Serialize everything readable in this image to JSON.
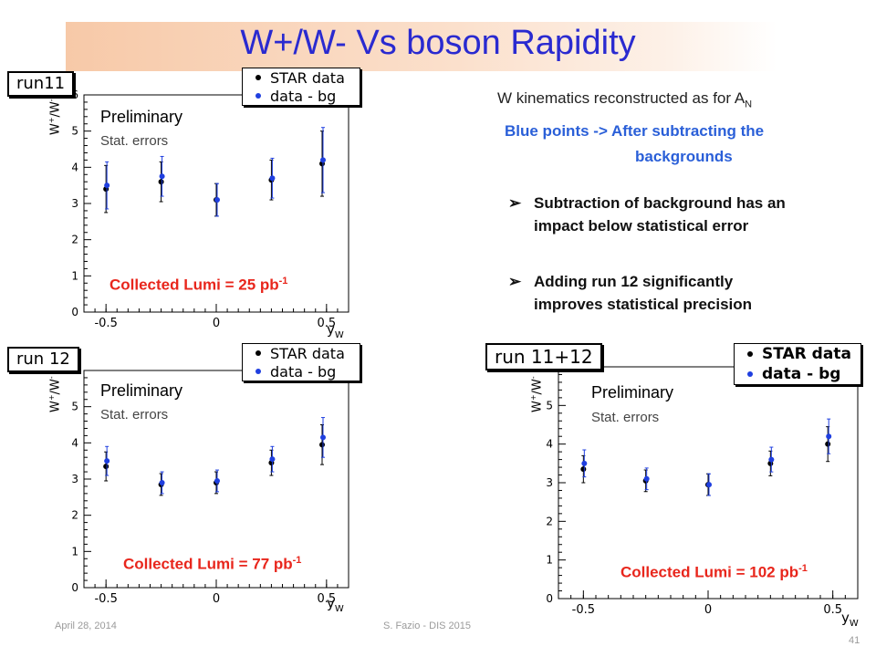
{
  "title": "W+/W- Vs boson Rapidity",
  "right_panel": {
    "kinematics": "W kinematics reconstructed as for A",
    "kinematics_sub": "N",
    "blue_note_line1": "Blue points -> After subtracting the",
    "blue_note_line2": "backgrounds",
    "bullet1_line1": "Subtraction of background has an",
    "bullet1_line2": "impact below statistical error",
    "bullet2_line1": "Adding run 12 significantly",
    "bullet2_line2": "improves statistical precision",
    "bullet_symbol": "➢"
  },
  "footer": {
    "date": "April 28, 2014",
    "author": "S. Fazio - DIS 2015",
    "page": "41"
  },
  "common": {
    "preliminary": "Preliminary",
    "stat_errors": "Stat. errors",
    "legend_star": "STAR data",
    "legend_bg": "data - bg",
    "ylabel_base": "W",
    "ylabel_sup1": "+",
    "ylabel_mid": "/W",
    "ylabel_sup2": "-",
    "xlabel_base": "y",
    "xlabel_sub": "W",
    "lumi_prefix": "Collected Lumi = ",
    "lumi_sup": "-1",
    "colors": {
      "star": "#000000",
      "bg": "#1f3fe0",
      "lumi": "#e8261c",
      "title": "#2a2ad0"
    }
  },
  "chart_data": [
    {
      "type": "scatter",
      "run_label": "run11",
      "lumi": "25 pb",
      "xlim": [
        -0.6,
        0.6
      ],
      "ylim": [
        0,
        6
      ],
      "xticks": [
        "-0.5",
        "0",
        "0.5"
      ],
      "yticks": [
        "0",
        "1",
        "2",
        "3",
        "4",
        "5",
        "6"
      ],
      "series": [
        {
          "name": "STAR data",
          "x": [
            -0.5,
            -0.25,
            0.0,
            0.25,
            0.48
          ],
          "y": [
            3.4,
            3.6,
            3.1,
            3.65,
            4.1
          ],
          "err": [
            0.65,
            0.55,
            0.45,
            0.55,
            0.9
          ]
        },
        {
          "name": "data - bg",
          "x": [
            -0.5,
            -0.25,
            0.0,
            0.25,
            0.48
          ],
          "y": [
            3.5,
            3.75,
            3.1,
            3.7,
            4.2
          ],
          "err": [
            0.65,
            0.55,
            0.45,
            0.55,
            0.9
          ]
        }
      ]
    },
    {
      "type": "scatter",
      "run_label": "run 12",
      "lumi": "77 pb",
      "xlim": [
        -0.6,
        0.6
      ],
      "ylim": [
        0,
        6
      ],
      "xticks": [
        "-0.5",
        "0",
        "0.5"
      ],
      "yticks": [
        "0",
        "1",
        "2",
        "3",
        "4",
        "5",
        "6"
      ],
      "series": [
        {
          "name": "STAR data",
          "x": [
            -0.5,
            -0.25,
            0.0,
            0.25,
            0.48
          ],
          "y": [
            3.35,
            2.85,
            2.9,
            3.45,
            3.95
          ],
          "err": [
            0.4,
            0.3,
            0.3,
            0.35,
            0.55
          ]
        },
        {
          "name": "data - bg",
          "x": [
            -0.5,
            -0.25,
            0.0,
            0.25,
            0.48
          ],
          "y": [
            3.5,
            2.9,
            2.95,
            3.55,
            4.15
          ],
          "err": [
            0.4,
            0.3,
            0.3,
            0.35,
            0.55
          ]
        }
      ]
    },
    {
      "type": "scatter",
      "run_label": "run 11+12",
      "lumi": "102 pb",
      "xlim": [
        -0.6,
        0.6
      ],
      "ylim": [
        0,
        6
      ],
      "xticks": [
        "-0.5",
        "0",
        "0.5"
      ],
      "yticks": [
        "0",
        "1",
        "2",
        "3",
        "4",
        "5",
        "6"
      ],
      "series": [
        {
          "name": "STAR data",
          "x": [
            -0.5,
            -0.25,
            0.0,
            0.25,
            0.48
          ],
          "y": [
            3.35,
            3.05,
            2.95,
            3.5,
            4.0
          ],
          "err": [
            0.35,
            0.28,
            0.28,
            0.32,
            0.45
          ]
        },
        {
          "name": "data - bg",
          "x": [
            -0.5,
            -0.25,
            0.0,
            0.25,
            0.48
          ],
          "y": [
            3.5,
            3.1,
            2.95,
            3.6,
            4.2
          ],
          "err": [
            0.35,
            0.28,
            0.28,
            0.32,
            0.45
          ]
        }
      ]
    }
  ]
}
